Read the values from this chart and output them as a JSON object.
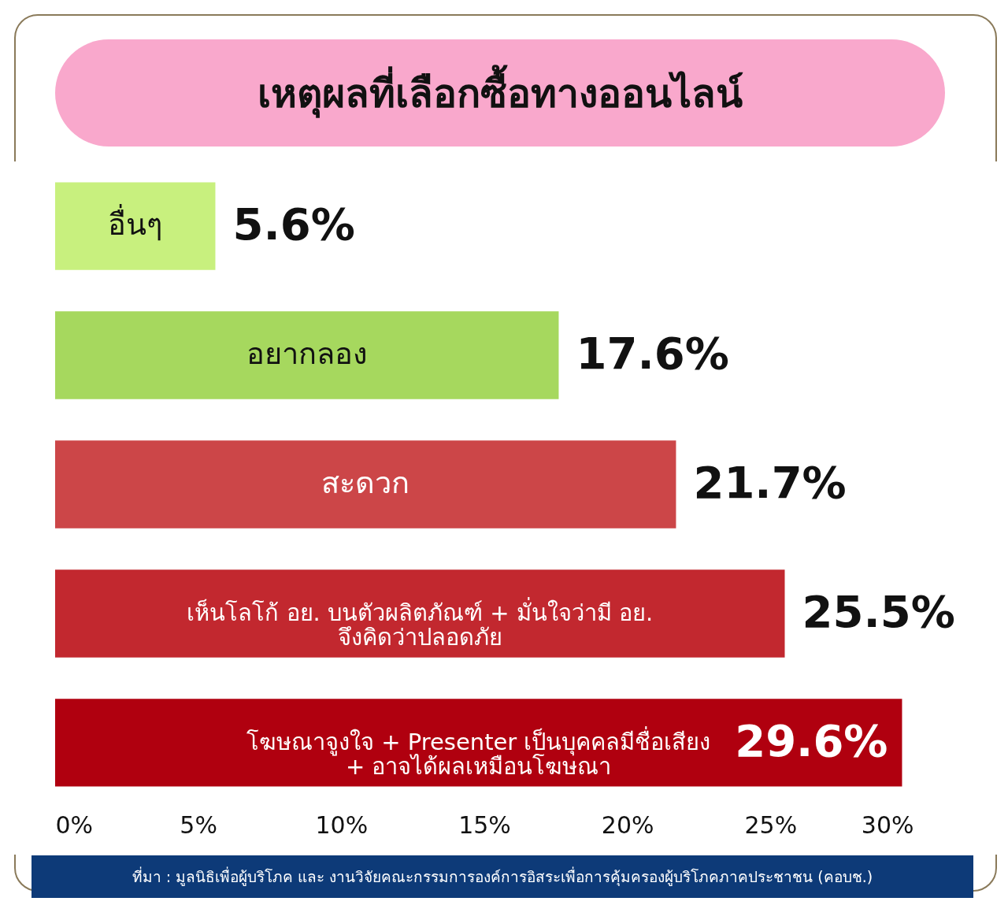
{
  "chart_data": {
    "type": "bar",
    "orientation": "horizontal",
    "title": "เหตุผลที่เลือกซื้อทางออนไลน์",
    "categories": [
      "อื่นๆ",
      "อยากลอง",
      "สะดวก",
      "เห็นโลโก้ อย. บนตัวผลิตภัณฑ์ + มั่นใจว่ามี อย.\nจึงคิดว่าปลอดภัย",
      "โฆษณาจูงใจ + Presenter เป็นบุคคลมีชื่อเสียง\n+ อาจได้ผลเหมือนโฆษณา"
    ],
    "values": [
      5.6,
      17.6,
      21.7,
      25.5,
      29.6
    ],
    "value_labels": [
      "5.6%",
      "17.6%",
      "21.7%",
      "25.5%",
      "29.6%"
    ],
    "colors": [
      "#c8f07e",
      "#a6d85e",
      "#cc4648",
      "#c2282f",
      "#b0000f"
    ],
    "xlim": [
      0,
      30
    ],
    "xticks": [
      {
        "value": 0,
        "label": "0%"
      },
      {
        "value": 5,
        "label": "5%"
      },
      {
        "value": 10,
        "label": "10%"
      },
      {
        "value": 15,
        "label": "15%"
      },
      {
        "value": 20,
        "label": "20%"
      },
      {
        "value": 25,
        "label": "25%"
      },
      {
        "value": 30,
        "label": "30%"
      }
    ],
    "tick_labels": "x",
    "grid": false,
    "annotations": [
      "ที่มา : มูลนิธิเพื่อผู้บริโภค และ งานวิจัยคณะกรรมการองค์การอิสระเพื่อการคุ้มครองผู้บริโภคภาคประชาชน (คอบช.)"
    ]
  }
}
